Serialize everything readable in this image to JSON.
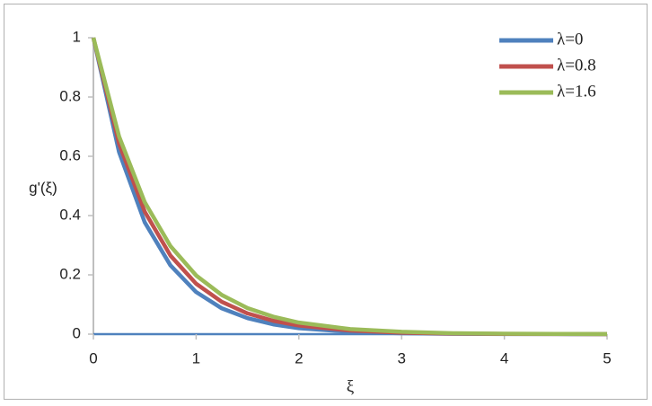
{
  "chart_data": {
    "type": "line",
    "x_label": "ξ",
    "y_label": "g'(ξ)",
    "x": [
      0,
      0.25,
      0.5,
      0.75,
      1,
      1.25,
      1.5,
      1.75,
      2,
      2.5,
      3,
      3.5,
      4,
      4.5,
      5
    ],
    "series": [
      {
        "name": "λ=0",
        "color": "#4f81bd",
        "values": [
          1,
          0.614,
          0.377,
          0.232,
          0.142,
          0.087,
          0.054,
          0.033,
          0.02,
          0.0076,
          0.0029,
          0.001,
          0.0004,
          0.0002,
          0.0001
        ]
      },
      {
        "name": "λ=0.8",
        "color": "#c0504d",
        "values": [
          1,
          0.643,
          0.413,
          0.265,
          0.17,
          0.109,
          0.07,
          0.045,
          0.029,
          0.012,
          0.005,
          0.002,
          0.0008,
          0.0003,
          0.0001
        ]
      },
      {
        "name": "λ=1.6",
        "color": "#9bbb59",
        "values": [
          1,
          0.667,
          0.445,
          0.297,
          0.198,
          0.132,
          0.088,
          0.059,
          0.039,
          0.017,
          0.008,
          0.003,
          0.0015,
          0.0007,
          0.0003
        ]
      }
    ],
    "xlim": [
      0,
      5
    ],
    "xticks": [
      0,
      1,
      2,
      3,
      4,
      5
    ],
    "ylim": [
      0,
      1
    ],
    "yticks": [
      0,
      0.2,
      0.4,
      0.6,
      0.8,
      1
    ],
    "grid": false,
    "legend": "top-right"
  }
}
